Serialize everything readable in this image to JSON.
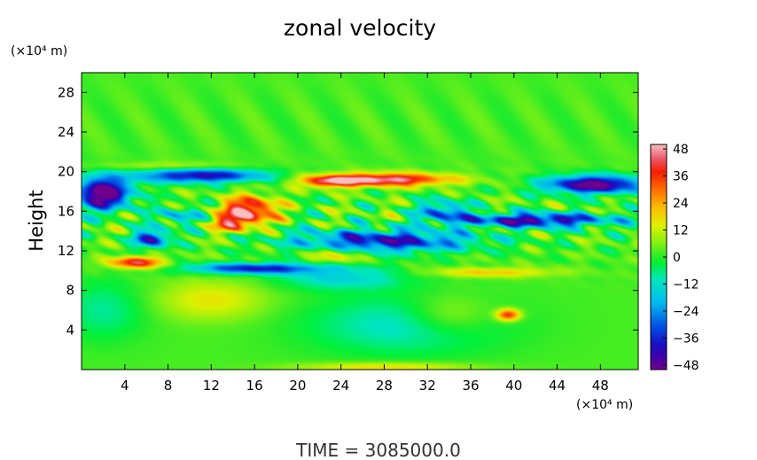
{
  "chart_data": {
    "type": "heatmap",
    "title": "zonal velocity",
    "ylabel": "Height",
    "xlabel": "",
    "x_units": "(×10⁴ m)",
    "y_units": "(×10⁴ m)",
    "footer": "TIME = 3085000.0",
    "xlim": [
      0,
      51.5
    ],
    "ylim": [
      0,
      30
    ],
    "x_ticks": [
      "4",
      "8",
      "12",
      "16",
      "20",
      "24",
      "28",
      "32",
      "36",
      "40",
      "44",
      "48"
    ],
    "x_tick_values": [
      4,
      8,
      12,
      16,
      20,
      24,
      28,
      32,
      36,
      40,
      44,
      48
    ],
    "y_ticks": [
      "4",
      "8",
      "12",
      "16",
      "20",
      "24",
      "28"
    ],
    "y_tick_values": [
      4,
      8,
      12,
      16,
      20,
      24,
      28
    ],
    "colorbar": {
      "range": [
        -50,
        50
      ],
      "ticks": [
        "48",
        "36",
        "24",
        "12",
        "0",
        "−12",
        "−24",
        "−36",
        "−48"
      ],
      "tick_values": [
        48,
        36,
        24,
        12,
        0,
        -12,
        -24,
        -36,
        -48
      ]
    },
    "features": [
      {
        "x": 28,
        "y": 19,
        "value": 42
      },
      {
        "x": 15,
        "y": 16,
        "value": 40
      },
      {
        "x": 5,
        "y": 10.8,
        "value": 38
      },
      {
        "x": 39.5,
        "y": 5.5,
        "value": 34
      },
      {
        "x": 2,
        "y": 17.5,
        "value": -48
      },
      {
        "x": 12,
        "y": 19.5,
        "value": -36
      },
      {
        "x": 47,
        "y": 18.5,
        "value": -46
      },
      {
        "x": 42,
        "y": 15,
        "value": -40
      },
      {
        "x": 28,
        "y": 13,
        "value": -36
      },
      {
        "x": 16,
        "y": 10,
        "value": -34
      },
      {
        "x": 6,
        "y": 13,
        "value": -38
      },
      {
        "x": 30,
        "y": 4.5,
        "value": -12
      },
      {
        "x": 12,
        "y": 7,
        "value": 12
      }
    ]
  }
}
